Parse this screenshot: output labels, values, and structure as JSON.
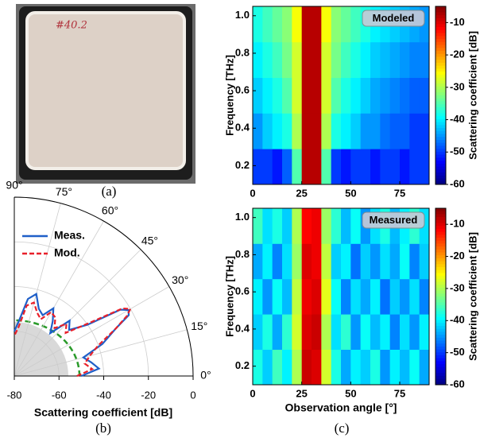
{
  "figure_labels": [
    "(a)",
    "(b)",
    "(c)"
  ],
  "photo_label": "#40.2",
  "chart_data": [
    {
      "type": "polar",
      "xlabel": "Scattering coefficient [dB]",
      "rlim": [
        -80,
        0
      ],
      "rticks": [
        -80,
        -60,
        -40,
        -20,
        0
      ],
      "thetalim": [
        0,
        90
      ],
      "thetaticks": [
        {
          "value": 0,
          "label": "0°"
        },
        {
          "value": 15,
          "label": "15°"
        },
        {
          "value": 30,
          "label": "30°"
        },
        {
          "value": 45,
          "label": "45°"
        },
        {
          "value": 60,
          "label": "60°"
        },
        {
          "value": 75,
          "label": "75°"
        },
        {
          "value": 90,
          "label": "90°"
        }
      ],
      "grid": true,
      "legend": "upper left",
      "theta": [
        0,
        5,
        10,
        15,
        20,
        25,
        28,
        30,
        32,
        35,
        40,
        45,
        50,
        55,
        60,
        65,
        70,
        75,
        80,
        85,
        90
      ],
      "series": [
        {
          "name": "Meas.",
          "color": "#1f5fc8",
          "dash": false,
          "values": [
            -50,
            -42,
            -45,
            -48,
            -38,
            -30,
            -22,
            -21,
            -24,
            -40,
            -48,
            -45,
            -55,
            -50,
            -45,
            -50,
            -48,
            -42,
            -45,
            -55,
            -60
          ]
        },
        {
          "name": "Mod.",
          "color": "#e8202a",
          "dash": true,
          "values": [
            -52,
            -45,
            -48,
            -45,
            -40,
            -30,
            -23,
            -20,
            -23,
            -38,
            -50,
            -47,
            -52,
            -48,
            -47,
            -52,
            -50,
            -46,
            -48,
            -58,
            -62
          ]
        }
      ]
    },
    {
      "type": "heatmap",
      "annotation": "Modeled",
      "ylabel": "Frequency [THz]",
      "colorbar_label": "Scattering coefficient [dB]",
      "colormap": "jet",
      "clim": [
        -60,
        -5
      ],
      "cticks": [
        -10,
        -20,
        -30,
        -40,
        -50,
        -60
      ],
      "xlim": [
        0,
        90
      ],
      "xticks": [
        0,
        25,
        50,
        75
      ],
      "ylim": [
        0.1,
        1.05
      ],
      "yticks": [
        0.2,
        0.4,
        0.6,
        0.8,
        {
          "value": 1,
          "label": "1.0"
        }
      ],
      "x_edges": [
        0,
        5,
        10,
        15,
        20,
        25,
        30,
        35,
        40,
        45,
        50,
        55,
        60,
        65,
        70,
        75,
        80,
        85,
        90
      ],
      "y_edges": [
        0.1,
        0.29,
        0.48,
        0.67,
        0.86,
        1.05
      ],
      "z": [
        [
          -50,
          -50,
          -52,
          -48,
          -35,
          -8,
          -8,
          -35,
          -50,
          -52,
          -50,
          -50,
          -52,
          -50,
          -50,
          -52,
          -50,
          -50
        ],
        [
          -45,
          -42,
          -40,
          -38,
          -30,
          -8,
          -8,
          -30,
          -38,
          -40,
          -42,
          -45,
          -45,
          -47,
          -48,
          -48,
          -50,
          -50
        ],
        [
          -42,
          -40,
          -38,
          -35,
          -28,
          -8,
          -8,
          -28,
          -35,
          -38,
          -40,
          -42,
          -44,
          -45,
          -46,
          -47,
          -48,
          -48
        ],
        [
          -40,
          -38,
          -36,
          -33,
          -28,
          -8,
          -8,
          -28,
          -33,
          -36,
          -38,
          -40,
          -42,
          -43,
          -44,
          -45,
          -46,
          -46
        ],
        [
          -38,
          -36,
          -34,
          -32,
          -26,
          -8,
          -8,
          -26,
          -32,
          -34,
          -36,
          -38,
          -40,
          -41,
          -42,
          -43,
          -44,
          -45
        ]
      ]
    },
    {
      "type": "heatmap",
      "annotation": "Measured",
      "xlabel": "Observation angle [°]",
      "ylabel": "Frequency [THz]",
      "colorbar_label": "Scattering coefficient [dB]",
      "colormap": "jet",
      "clim": [
        -60,
        -5
      ],
      "cticks": [
        -10,
        -20,
        -30,
        -40,
        -50,
        -60
      ],
      "xlim": [
        0,
        90
      ],
      "xticks": [
        0,
        25,
        50,
        75
      ],
      "ylim": [
        0.1,
        1.05
      ],
      "yticks": [
        0.2,
        0.4,
        0.6,
        0.8,
        {
          "value": 1,
          "label": "1.0"
        }
      ],
      "x_edges": [
        0,
        5,
        10,
        15,
        20,
        25,
        30,
        35,
        40,
        45,
        50,
        55,
        60,
        65,
        70,
        75,
        80,
        85,
        90
      ],
      "y_edges": [
        0.1,
        0.29,
        0.48,
        0.67,
        0.86,
        1.05
      ],
      "z": [
        [
          -38,
          -42,
          -36,
          -40,
          -30,
          -9,
          -10,
          -28,
          -38,
          -44,
          -40,
          -42,
          -38,
          -45,
          -40,
          -43,
          -39,
          -44
        ],
        [
          -42,
          -38,
          -44,
          -37,
          -28,
          -10,
          -9,
          -30,
          -41,
          -37,
          -45,
          -39,
          -43,
          -40,
          -46,
          -41,
          -45,
          -40
        ],
        [
          -40,
          -45,
          -39,
          -43,
          -29,
          -11,
          -10,
          -27,
          -39,
          -46,
          -41,
          -44,
          -40,
          -47,
          -42,
          -45,
          -41,
          -46
        ],
        [
          -44,
          -40,
          -46,
          -41,
          -31,
          -10,
          -11,
          -29,
          -42,
          -40,
          -47,
          -42,
          -45,
          -41,
          -44,
          -39,
          -46,
          -42
        ],
        [
          -36,
          -41,
          -38,
          -42,
          -30,
          -12,
          -11,
          -31,
          -37,
          -43,
          -39,
          -45,
          -41,
          -38,
          -43,
          -40,
          -37,
          -41
        ]
      ]
    }
  ]
}
